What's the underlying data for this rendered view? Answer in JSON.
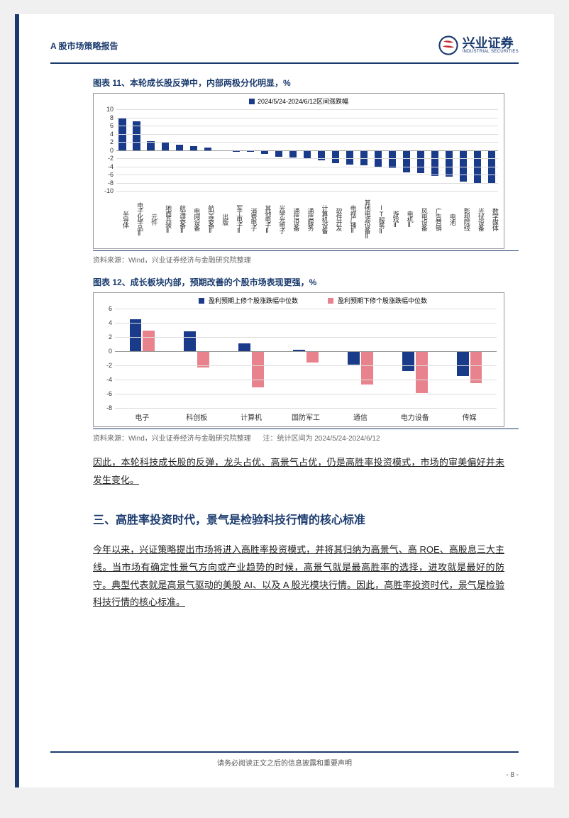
{
  "header": {
    "title": "A 股市场策略报告",
    "logo_cn": "兴业证券",
    "logo_en": "INDUSTRIAL SECURITIES"
  },
  "chart11": {
    "title": "图表 11、本轮成长股反弹中，内部两极分化明显，%",
    "type": "bar",
    "legend_label": "2024/5/24-2024/6/12区间涨跌幅",
    "bar_color": "#1a3a8a",
    "background_color": "#ffffff",
    "grid_color": "#dddddd",
    "ylim": [
      -10,
      10
    ],
    "ytick_step": 2,
    "categories": [
      "半导体",
      "电子化学品Ⅱ",
      "元件",
      "地面兵装Ⅱ",
      "航海装备Ⅱ",
      "电网设备",
      "航空装备Ⅱ",
      "出版",
      "军工电子Ⅱ",
      "消费电子",
      "其他电子Ⅱ",
      "光学光电子",
      "通信设备",
      "通信服务",
      "计算机设备",
      "软件开发",
      "电视广播Ⅱ",
      "其他电源设备Ⅱ",
      "IT服务Ⅱ",
      "游戏Ⅱ",
      "电机Ⅱ",
      "风电设备",
      "广告营销",
      "电池",
      "影视院线",
      "光伏设备",
      "数字媒体"
    ],
    "values": [
      7.8,
      7.0,
      2.2,
      2.0,
      1.3,
      1.0,
      0.6,
      -0.2,
      -0.4,
      -0.5,
      -0.9,
      -1.7,
      -1.8,
      -2.1,
      -2.6,
      -3.3,
      -3.5,
      -3.7,
      -4.1,
      -4.5,
      -5.4,
      -5.6,
      -6.3,
      -6.5,
      -7.7,
      -8.0,
      -8.2
    ],
    "source": "资料来源：Wind，兴业证券经济与金融研究院整理"
  },
  "chart12": {
    "title": "图表 12、成长板块内部，预期改善的个股市场表现更强，%",
    "type": "grouped-bar",
    "series": [
      {
        "label": "盈利预期上修个股涨跌幅中位数",
        "color": "#1a3a8a"
      },
      {
        "label": "盈利预期下修个股涨跌幅中位数",
        "color": "#e8838e"
      }
    ],
    "background_color": "#ffffff",
    "grid_color": "#dddddd",
    "ylim": [
      -8,
      6
    ],
    "ytick_step": 2,
    "categories": [
      "电子",
      "科创板",
      "计算机",
      "国防军工",
      "通信",
      "电力设备",
      "传媒"
    ],
    "values_up": [
      4.5,
      2.8,
      1.1,
      0.2,
      -1.9,
      -2.8,
      -3.5
    ],
    "values_down": [
      2.9,
      -2.3,
      -5.1,
      -1.6,
      -4.7,
      -5.9,
      -4.5
    ],
    "source": "资料来源：Wind，兴业证券经济与金融研究院整理",
    "note": "注：统计区间为 2024/5/24-2024/6/12"
  },
  "body": {
    "para1": "因此，本轮科技成长股的反弹，龙头占优、高景气占优，仍是高胜率投资模式，市场的审美偏好并未发生变化。",
    "heading": "三、高胜率投资时代，景气是检验科技行情的核心标准",
    "para2": "今年以来，兴证策略提出市场将进入高胜率投资模式，并将其归纳为高景气、高 ROE、高股息三大主线。当市场有确定性景气方向或产业趋势的时候，高景气就是最高胜率的选择，进攻就是最好的防守。典型代表就是高景气驱动的美股 AI、以及 A 股光模块行情。因此，高胜率投资时代，景气是检验科技行情的核心标准。"
  },
  "footer": {
    "disclaimer": "请务必阅读正文之后的信息披露和重要声明",
    "page_num": "- 8 -"
  },
  "colors": {
    "brand": "#1a3a6e",
    "logo_red": "#c62f2f"
  }
}
